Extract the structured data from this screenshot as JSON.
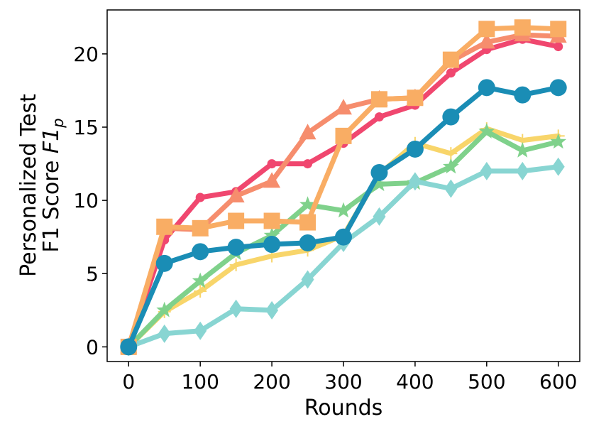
{
  "chart_data": {
    "type": "line",
    "xlabel": "Rounds",
    "ylabel_line1": "Personalized Test",
    "ylabel_line2_prefix": "F1 Score ",
    "ylabel_line2_math": "F1",
    "ylabel_line2_sub": "p",
    "xlim": [
      -30,
      630
    ],
    "ylim": [
      -1,
      23
    ],
    "xticks": [
      0,
      100,
      200,
      300,
      400,
      500,
      600
    ],
    "yticks": [
      0,
      5,
      10,
      15,
      20
    ],
    "x": [
      0,
      50,
      100,
      150,
      200,
      250,
      300,
      350,
      400,
      450,
      500,
      550,
      600
    ],
    "grid": false,
    "series": [
      {
        "color": "#f8d56a",
        "marker": "plus",
        "values": [
          0,
          2.4,
          3.8,
          5.6,
          6.2,
          6.6,
          7.6,
          11.8,
          13.9,
          13.2,
          14.9,
          14.1,
          14.4
        ]
      },
      {
        "color": "#7fd18b",
        "marker": "star",
        "values": [
          0,
          2.5,
          4.5,
          6.4,
          7.6,
          9.7,
          9.3,
          11.1,
          11.2,
          12.3,
          14.7,
          13.4,
          14.0
        ]
      },
      {
        "color": "#88d5d2",
        "marker": "diamond",
        "values": [
          0,
          0.9,
          1.1,
          2.6,
          2.5,
          4.6,
          7.1,
          8.9,
          11.3,
          10.8,
          12.0,
          12.0,
          12.3
        ]
      },
      {
        "color": "#f0476f",
        "marker": "circle-small",
        "values": [
          0,
          7.3,
          10.2,
          10.6,
          12.5,
          12.5,
          13.9,
          15.7,
          16.5,
          18.7,
          20.3,
          21.0,
          20.5
        ]
      },
      {
        "color": "#f68d6d",
        "marker": "triangle",
        "values": [
          0,
          8.1,
          8.0,
          10.3,
          11.3,
          14.6,
          16.3,
          16.9,
          17.0,
          19.5,
          20.8,
          21.3,
          21.2
        ]
      },
      {
        "color": "#f9ad64",
        "marker": "square",
        "values": [
          0,
          8.2,
          8.1,
          8.6,
          8.6,
          8.5,
          14.4,
          16.9,
          17.0,
          19.6,
          21.7,
          21.8,
          21.7
        ]
      },
      {
        "color": "#1a8db5",
        "marker": "circle",
        "values": [
          0,
          5.7,
          6.5,
          6.8,
          7.0,
          7.1,
          7.5,
          11.9,
          13.5,
          15.7,
          17.7,
          17.2,
          17.7
        ]
      }
    ]
  }
}
